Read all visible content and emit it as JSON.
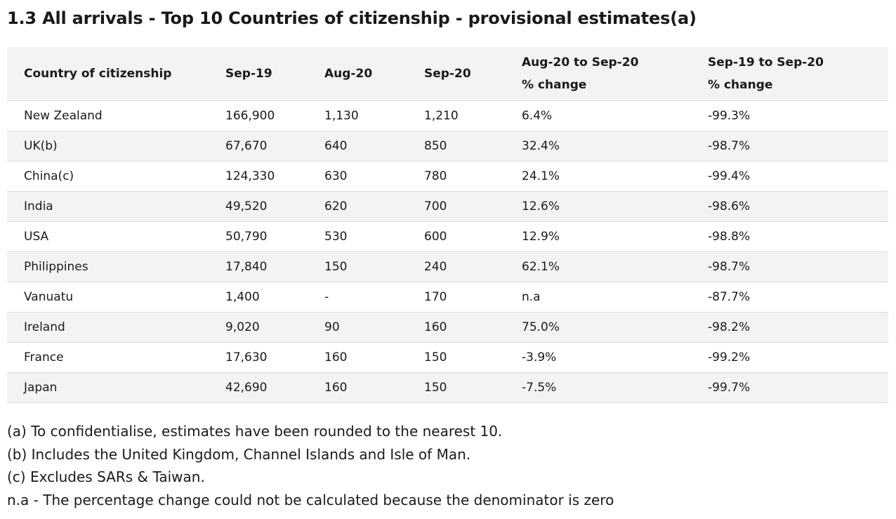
{
  "title": "1.3 All arrivals - Top 10 Countries of citizenship - provisional estimates(a)",
  "table": {
    "headers": {
      "country": "Country of citizenship",
      "sep19": "Sep-19",
      "aug20": "Aug-20",
      "sep20": "Sep-20",
      "aug_sep_change_line1": "Aug-20 to Sep-20",
      "aug_sep_change_line2": "% change",
      "sep_sep_change_line1": "Sep-19 to Sep-20",
      "sep_sep_change_line2": "% change"
    },
    "rows": [
      {
        "country": "New Zealand",
        "sep19": "166,900",
        "aug20": "1,130",
        "sep20": "1,210",
        "aug_sep": "6.4%",
        "sep_sep": "-99.3%"
      },
      {
        "country": "UK(b)",
        "sep19": "67,670",
        "aug20": "640",
        "sep20": "850",
        "aug_sep": "32.4%",
        "sep_sep": "-98.7%"
      },
      {
        "country": "China(c)",
        "sep19": "124,330",
        "aug20": "630",
        "sep20": "780",
        "aug_sep": "24.1%",
        "sep_sep": "-99.4%"
      },
      {
        "country": "India",
        "sep19": "49,520",
        "aug20": "620",
        "sep20": "700",
        "aug_sep": "12.6%",
        "sep_sep": "-98.6%"
      },
      {
        "country": "USA",
        "sep19": "50,790",
        "aug20": "530",
        "sep20": "600",
        "aug_sep": "12.9%",
        "sep_sep": "-98.8%"
      },
      {
        "country": "Philippines",
        "sep19": "17,840",
        "aug20": "150",
        "sep20": "240",
        "aug_sep": "62.1%",
        "sep_sep": "-98.7%"
      },
      {
        "country": "Vanuatu",
        "sep19": "1,400",
        "aug20": "-",
        "sep20": "170",
        "aug_sep": "n.a",
        "sep_sep": "-87.7%"
      },
      {
        "country": "Ireland",
        "sep19": "9,020",
        "aug20": "90",
        "sep20": "160",
        "aug_sep": "75.0%",
        "sep_sep": "-98.2%"
      },
      {
        "country": "France",
        "sep19": "17,630",
        "aug20": "160",
        "sep20": "150",
        "aug_sep": "-3.9%",
        "sep_sep": "-99.2%"
      },
      {
        "country": "Japan",
        "sep19": "42,690",
        "aug20": "160",
        "sep20": "150",
        "aug_sep": "-7.5%",
        "sep_sep": "-99.7%"
      }
    ]
  },
  "notes": [
    "(a) To confidentialise, estimates have been rounded to the nearest 10.",
    "(b) Includes the United Kingdom, Channel Islands and Isle of Man.",
    "(c) Excludes SARs & Taiwan.",
    "n.a - The percentage change could not be calculated because the denominator is zero"
  ]
}
